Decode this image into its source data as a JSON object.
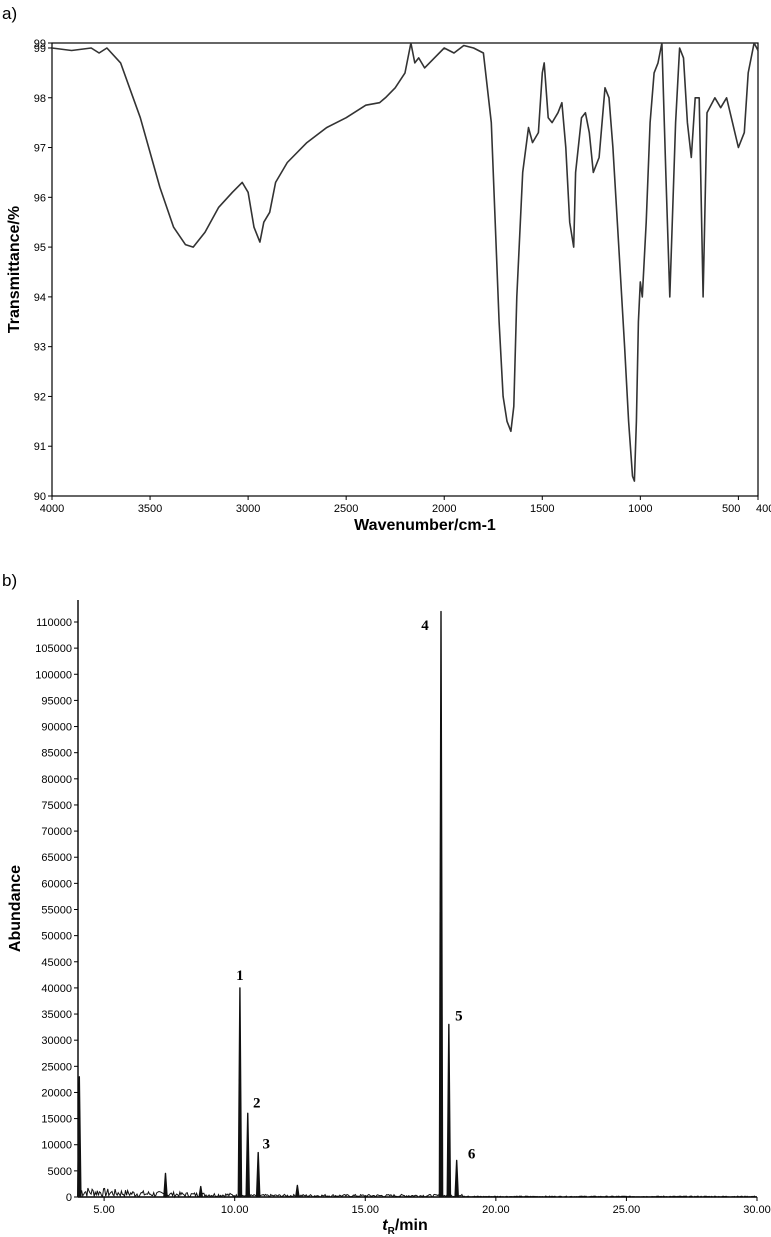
{
  "panels": {
    "a": "a)",
    "b": "b)"
  },
  "chart_data": [
    {
      "type": "line",
      "panel": "a)",
      "title": "",
      "xlabel": "Wavenumber/cm-1",
      "ylabel": "Transmittance/%",
      "xlim": [
        4000,
        400
      ],
      "ylim": [
        90,
        99.1
      ],
      "x_ticks": [
        "4000",
        "3500",
        "3000",
        "2500",
        "2000",
        "1500",
        "1000",
        "500",
        "400"
      ],
      "y_ticks": [
        "99",
        "99",
        "98",
        "97",
        "96",
        "95",
        "94",
        "93",
        "92",
        "91",
        "90"
      ],
      "series": [
        {
          "x": [
            4000,
            3900,
            3800,
            3760,
            3720,
            3650,
            3550,
            3450,
            3380,
            3320,
            3280,
            3220,
            3150,
            3080,
            3030,
            3000,
            2970,
            2940,
            2920,
            2890,
            2860,
            2800,
            2700,
            2600,
            2500,
            2400,
            2330,
            2300,
            2250,
            2200,
            2170,
            2150,
            2130,
            2100,
            2050,
            2000,
            1950,
            1900,
            1850,
            1800,
            1760,
            1740,
            1720,
            1700,
            1680,
            1660,
            1645,
            1630,
            1600,
            1570,
            1550,
            1520,
            1500,
            1490,
            1470,
            1450,
            1420,
            1400,
            1380,
            1360,
            1340,
            1330,
            1300,
            1280,
            1260,
            1240,
            1210,
            1180,
            1160,
            1140,
            1110,
            1080,
            1060,
            1040,
            1030,
            1020,
            1010,
            1000,
            990,
            970,
            950,
            930,
            910,
            890,
            870,
            850,
            820,
            800,
            780,
            760,
            740,
            720,
            700,
            680,
            660,
            620,
            590,
            560,
            530,
            500,
            470,
            450,
            420,
            400
          ],
          "y": [
            99.0,
            98.95,
            99.0,
            98.9,
            99.0,
            98.7,
            97.6,
            96.2,
            95.4,
            95.05,
            95.0,
            95.3,
            95.8,
            96.1,
            96.3,
            96.1,
            95.4,
            95.1,
            95.5,
            95.7,
            96.3,
            96.7,
            97.1,
            97.4,
            97.6,
            97.85,
            97.9,
            98.0,
            98.2,
            98.5,
            99.1,
            98.7,
            98.8,
            98.6,
            98.8,
            99.0,
            98.9,
            99.05,
            99.0,
            98.9,
            97.5,
            95.5,
            93.5,
            92.0,
            91.5,
            91.3,
            91.8,
            94.0,
            96.5,
            97.4,
            97.1,
            97.3,
            98.5,
            98.7,
            97.6,
            97.5,
            97.7,
            97.9,
            97.0,
            95.5,
            95.0,
            96.5,
            97.6,
            97.7,
            97.3,
            96.5,
            96.8,
            98.2,
            98.0,
            97.0,
            95.0,
            93.0,
            91.5,
            90.4,
            90.3,
            91.5,
            93.5,
            94.3,
            94.0,
            95.5,
            97.5,
            98.5,
            98.7,
            99.1,
            96.5,
            94.0,
            97.5,
            99.0,
            98.8,
            97.5,
            96.8,
            98.0,
            98.0,
            94.0,
            97.7,
            98.0,
            97.8,
            98.0,
            97.5,
            97.0,
            97.3,
            98.5,
            99.1,
            98.95
          ]
        }
      ]
    },
    {
      "type": "line",
      "panel": "b)",
      "title": "",
      "xlabel_main": "t",
      "xlabel_sub": "R",
      "xlabel_rest": "/min",
      "ylabel": "Abundance",
      "xlim": [
        4.0,
        30.0
      ],
      "ylim": [
        0,
        112000
      ],
      "x_ticks": [
        "5.00",
        "10.00",
        "15.00",
        "20.00",
        "25.00",
        "30.00"
      ],
      "y_ticks": [
        "0",
        "5000",
        "10000",
        "15000",
        "20000",
        "25000",
        "30000",
        "35000",
        "40000",
        "45000",
        "50000",
        "55000",
        "60000",
        "65000",
        "70000",
        "75000",
        "80000",
        "85000",
        "90000",
        "95000",
        "100000",
        "105000",
        "110000"
      ],
      "peaks": [
        {
          "label": "1",
          "t": 10.2,
          "abundance": 40000
        },
        {
          "label": "2",
          "t": 10.5,
          "abundance": 16000
        },
        {
          "label": "3",
          "t": 10.9,
          "abundance": 8500
        },
        {
          "label": "4",
          "t": 17.9,
          "abundance": 112000
        },
        {
          "label": "5",
          "t": 18.2,
          "abundance": 33000
        },
        {
          "label": "6",
          "t": 18.5,
          "abundance": 7000
        }
      ],
      "minor_peaks": [
        {
          "t": 4.05,
          "abundance": 23000
        },
        {
          "t": 7.35,
          "abundance": 4500
        },
        {
          "t": 8.7,
          "abundance": 2000
        },
        {
          "t": 12.4,
          "abundance": 2200
        }
      ]
    }
  ]
}
